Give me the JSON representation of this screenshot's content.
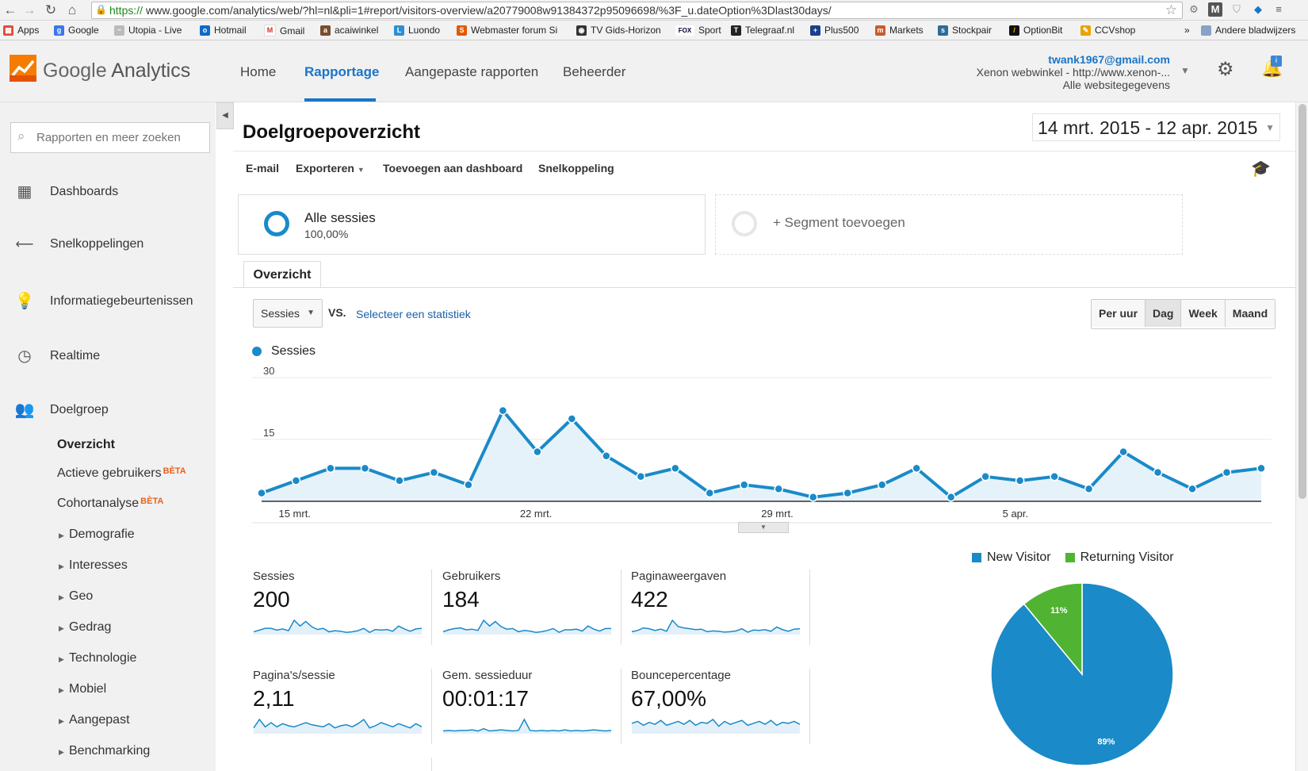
{
  "browser": {
    "url_scheme": "https://",
    "url_rest": "www.google.com/analytics/web/?hl=nl&pli=1#report/visitors-overview/a20779008w91384372p95096698/%3F_u.dateOption%3Dlast30days/",
    "bookmarks": [
      "Apps",
      "Google",
      "Utopia - Live",
      "Hotmail",
      "Gmail",
      "acaiwinkel",
      "Luondo",
      "Webmaster forum Si",
      "TV Gids-Horizon",
      "Sport",
      "Telegraaf.nl",
      "Plus500",
      "Markets",
      "Stockpair",
      "OptionBit",
      "CCVshop"
    ],
    "bookmarks_more": "»",
    "other_bookmarks": "Andere bladwijzers"
  },
  "header": {
    "logo_google": "Google",
    "logo_analytics": "Analytics",
    "nav": [
      "Home",
      "Rapportage",
      "Aangepaste rapporten",
      "Beheerder"
    ],
    "account_email": "twank1967@gmail.com",
    "account_property": "Xenon webwinkel - http://www.xenon-...",
    "account_view": "Alle websitegegevens",
    "notification_badge": "i"
  },
  "sidebar": {
    "search_placeholder": "Rapporten en meer zoeken",
    "main_items": [
      "Dashboards",
      "Snelkoppelingen",
      "Informatiegebeurtenissen",
      "Realtime",
      "Doelgroep"
    ],
    "sub_items": [
      "Overzicht",
      "Actieve gebruikers",
      "Cohortanalyse"
    ],
    "beta_label": "BÈTA",
    "expand_items": [
      "Demografie",
      "Interesses",
      "Geo",
      "Gedrag",
      "Technologie",
      "Mobiel",
      "Aangepast",
      "Benchmarking"
    ]
  },
  "main": {
    "title": "Doelgroepoverzicht",
    "date_range": "14 mrt. 2015 - 12 apr. 2015",
    "actions": [
      "E-mail",
      "Exporteren",
      "Toevoegen aan dashboard",
      "Snelkoppeling"
    ],
    "segment_name": "Alle sessies",
    "segment_pct": "100,00%",
    "add_segment": "+ Segment toevoegen",
    "tab": "Overzicht",
    "metric_select": "Sessies",
    "vs_label": "VS.",
    "select_stat": "Selecteer een statistiek",
    "periods": [
      "Per uur",
      "Dag",
      "Week",
      "Maand"
    ],
    "active_period": "Dag",
    "legend_series": "Sessies"
  },
  "chart_data": [
    {
      "type": "area",
      "series": [
        {
          "name": "Sessies",
          "values": [
            2,
            5,
            8,
            8,
            5,
            7,
            4,
            22,
            12,
            20,
            11,
            6,
            8,
            2,
            4,
            3,
            1,
            2,
            4,
            8,
            1,
            6,
            5,
            6,
            3,
            12,
            7,
            3,
            7,
            8
          ]
        }
      ],
      "x_tick_labels": [
        "15 mrt.",
        "22 mrt.",
        "29 mrt.",
        "5 apr."
      ],
      "y_tick_labels": [
        "30",
        "15"
      ],
      "ylim": [
        0,
        30
      ],
      "color": "#1a8ac8",
      "grid": true
    },
    {
      "type": "pie",
      "categories": [
        "New Visitor",
        "Returning Visitor"
      ],
      "values": [
        89,
        11
      ],
      "labels": [
        "89%",
        "11%"
      ],
      "colors": [
        "#1a8ac8",
        "#50b432"
      ],
      "legend_position": "top"
    }
  ],
  "kpis": [
    {
      "label": "Sessies",
      "value": "200",
      "spark": [
        2,
        5,
        8,
        8,
        5,
        7,
        4,
        22,
        12,
        20,
        11,
        6,
        8,
        2,
        4,
        3,
        1,
        2,
        4,
        8,
        1,
        6,
        5,
        6,
        3,
        12,
        7,
        3,
        7,
        8
      ]
    },
    {
      "label": "Gebruikers",
      "value": "184",
      "spark": [
        2,
        5,
        7,
        8,
        5,
        6,
        4,
        20,
        11,
        18,
        10,
        6,
        7,
        2,
        4,
        3,
        1,
        2,
        4,
        7,
        1,
        5,
        5,
        6,
        3,
        11,
        6,
        3,
        7,
        7
      ]
    },
    {
      "label": "Paginaweergaven",
      "value": "422",
      "spark": [
        3,
        6,
        12,
        10,
        6,
        9,
        4,
        30,
        15,
        12,
        10,
        8,
        9,
        3,
        5,
        4,
        2,
        3,
        5,
        10,
        2,
        7,
        6,
        8,
        4,
        14,
        8,
        4,
        9,
        10
      ]
    },
    {
      "label": "Pagina's/sessie",
      "value": "2,11",
      "spark": [
        4,
        12,
        5,
        9,
        5,
        8,
        6,
        5,
        7,
        9,
        7,
        6,
        5,
        8,
        4,
        6,
        7,
        5,
        8,
        12,
        4,
        6,
        9,
        7,
        5,
        8,
        6,
        4,
        8,
        5
      ]
    },
    {
      "label": "Gem. sessieduur",
      "value": "00:01:17",
      "spark": [
        2,
        3,
        2,
        3,
        3,
        4,
        2,
        6,
        2,
        3,
        4,
        3,
        2,
        3,
        22,
        3,
        2,
        3,
        2,
        3,
        2,
        4,
        2,
        3,
        2,
        3,
        4,
        3,
        2,
        3
      ]
    },
    {
      "label": "Bouncepercentage",
      "value": "67,00%",
      "spark": [
        9,
        11,
        7,
        10,
        8,
        12,
        7,
        9,
        11,
        8,
        12,
        7,
        10,
        9,
        13,
        6,
        11,
        8,
        10,
        12,
        7,
        9,
        11,
        8,
        12,
        7,
        10,
        9,
        11,
        8
      ]
    }
  ]
}
